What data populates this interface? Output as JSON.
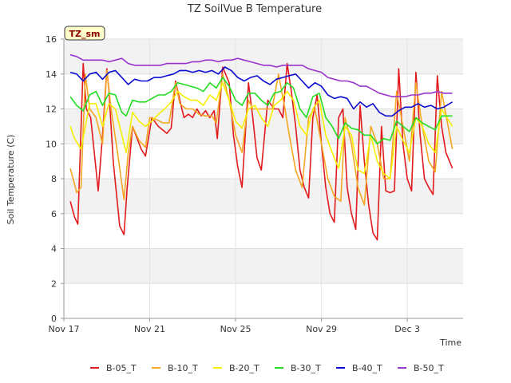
{
  "chart_data": {
    "type": "line",
    "title": "TZ SoilVue B Temperature",
    "xlabel": "Time",
    "ylabel": "Soil Temperature (C)",
    "badge": "TZ_sm",
    "ylim": [
      0,
      16
    ],
    "yticks": [
      0,
      2,
      4,
      6,
      8,
      10,
      12,
      14,
      16
    ],
    "xlim": [
      0,
      18.6
    ],
    "xticks": [
      {
        "x": 0,
        "label": "Nov 17"
      },
      {
        "x": 4,
        "label": "Nov 21"
      },
      {
        "x": 8,
        "label": "Nov 25"
      },
      {
        "x": 12,
        "label": "Nov 29"
      },
      {
        "x": 16,
        "label": "Dec 3"
      }
    ],
    "x_units": "days since Nov 17",
    "grid": true,
    "legend_position": "bottom",
    "series": [
      {
        "name": "B-05_T",
        "color": "#e31a1c",
        "x": [
          0.3,
          0.5,
          0.65,
          0.9,
          1.05,
          1.25,
          1.6,
          1.8,
          2.0,
          2.1,
          2.3,
          2.6,
          2.8,
          2.95,
          3.2,
          3.6,
          3.8,
          4.1,
          4.4,
          4.6,
          4.8,
          5.0,
          5.2,
          5.4,
          5.6,
          5.8,
          6.0,
          6.2,
          6.4,
          6.6,
          6.8,
          7.0,
          7.15,
          7.4,
          7.7,
          7.9,
          8.1,
          8.3,
          8.6,
          8.8,
          9.0,
          9.2,
          9.5,
          9.8,
          10.0,
          10.2,
          10.4,
          10.6,
          10.8,
          11.0,
          11.2,
          11.4,
          11.6,
          11.8,
          12.0,
          12.2,
          12.4,
          12.6,
          12.8,
          13.0,
          13.2,
          13.4,
          13.6,
          13.8,
          14.0,
          14.2,
          14.4,
          14.6,
          14.8,
          15.0,
          15.2,
          15.4,
          15.6,
          15.8,
          16.0,
          16.2,
          16.4,
          16.6,
          16.8,
          17.0,
          17.2,
          17.4,
          17.6,
          17.8,
          18.1
        ],
        "y": [
          6.7,
          5.8,
          5.4,
          14.6,
          12.0,
          11.5,
          7.3,
          10.5,
          14.3,
          13.0,
          9.0,
          5.3,
          4.8,
          7.5,
          11.0,
          9.7,
          9.3,
          11.5,
          11.0,
          10.8,
          10.6,
          10.9,
          13.6,
          12.5,
          11.5,
          11.7,
          11.5,
          12.0,
          11.6,
          11.9,
          11.5,
          11.9,
          10.3,
          14.4,
          13.5,
          10.5,
          8.7,
          7.5,
          13.5,
          11.5,
          9.2,
          8.5,
          12.5,
          12.0,
          12.0,
          11.5,
          14.6,
          13.0,
          11.0,
          8.5,
          7.5,
          6.9,
          11.5,
          12.8,
          10.0,
          7.5,
          6.0,
          5.5,
          11.5,
          12.0,
          7.5,
          6.0,
          5.1,
          12.2,
          9.0,
          6.5,
          4.9,
          4.5,
          11.0,
          7.3,
          7.2,
          7.3,
          14.3,
          10.0,
          8.0,
          7.3,
          14.1,
          10.5,
          8.0,
          7.5,
          7.1,
          13.9,
          11.0,
          9.5,
          8.6
        ]
      },
      {
        "name": "B-10_T",
        "color": "#f5a623",
        "x": [
          0.3,
          0.6,
          0.8,
          1.0,
          1.2,
          1.5,
          1.8,
          2.0,
          2.2,
          2.5,
          2.8,
          3.0,
          3.2,
          3.5,
          3.8,
          4.0,
          4.3,
          4.6,
          4.9,
          5.2,
          5.4,
          5.7,
          6.0,
          6.3,
          6.6,
          6.9,
          7.1,
          7.4,
          7.7,
          8.0,
          8.3,
          8.6,
          8.8,
          9.1,
          9.4,
          9.7,
          10.0,
          10.3,
          10.5,
          10.8,
          11.1,
          11.4,
          11.7,
          12.0,
          12.3,
          12.6,
          12.9,
          13.1,
          13.4,
          13.7,
          14.0,
          14.3,
          14.6,
          14.9,
          15.2,
          15.5,
          15.8,
          16.1,
          16.4,
          16.7,
          17.0,
          17.3,
          17.6,
          18.1
        ],
        "y": [
          8.6,
          7.2,
          7.5,
          14.0,
          12.0,
          11.5,
          10.0,
          14.2,
          12.0,
          9.5,
          6.8,
          9.5,
          11.0,
          10.2,
          9.8,
          11.5,
          11.4,
          11.2,
          11.2,
          13.5,
          12.3,
          12.0,
          12.0,
          11.7,
          11.6,
          11.6,
          11.2,
          14.0,
          12.5,
          10.5,
          9.5,
          12.5,
          12.0,
          12.0,
          12.0,
          12.0,
          14.0,
          12.0,
          10.5,
          8.5,
          7.5,
          11.5,
          12.0,
          10.0,
          8.0,
          7.0,
          6.7,
          11.5,
          10.0,
          7.5,
          6.5,
          11.0,
          10.0,
          8.0,
          8.0,
          13.0,
          11.0,
          9.0,
          13.5,
          11.0,
          9.0,
          8.4,
          13.0,
          9.7
        ]
      },
      {
        "name": "B-20_T",
        "color": "#f5f000",
        "x": [
          0.3,
          0.5,
          0.8,
          1.2,
          1.5,
          1.8,
          2.1,
          2.4,
          2.7,
          2.9,
          3.2,
          3.5,
          3.8,
          4.1,
          4.4,
          4.7,
          5.0,
          5.3,
          5.6,
          5.9,
          6.2,
          6.5,
          6.8,
          7.1,
          7.4,
          7.7,
          8.0,
          8.3,
          8.6,
          8.9,
          9.2,
          9.5,
          9.8,
          10.1,
          10.4,
          10.7,
          11.0,
          11.3,
          11.6,
          11.9,
          12.2,
          12.5,
          12.8,
          13.1,
          13.4,
          13.7,
          14.0,
          14.3,
          14.6,
          14.9,
          15.2,
          15.5,
          15.8,
          16.1,
          16.4,
          16.7,
          17.0,
          17.3,
          17.6,
          18.1
        ],
        "y": [
          11.0,
          10.3,
          9.7,
          12.3,
          12.3,
          11.0,
          12.3,
          12.0,
          10.5,
          9.5,
          11.8,
          11.3,
          11.0,
          11.3,
          11.7,
          12.0,
          12.4,
          13.0,
          12.7,
          12.5,
          12.5,
          12.2,
          12.8,
          12.5,
          13.5,
          12.5,
          11.3,
          10.9,
          12.0,
          12.2,
          11.5,
          11.0,
          12.2,
          12.5,
          13.0,
          12.5,
          11.0,
          10.5,
          12.0,
          12.5,
          10.5,
          9.5,
          8.6,
          11.0,
          10.5,
          8.5,
          8.3,
          10.5,
          9.0,
          8.3,
          8.0,
          11.0,
          10.2,
          9.5,
          11.5,
          11.0,
          10.0,
          9.5,
          12.0,
          11.0
        ]
      },
      {
        "name": "B-30_T",
        "color": "#22dd22",
        "x": [
          0.3,
          0.6,
          0.9,
          1.2,
          1.5,
          1.8,
          2.1,
          2.4,
          2.7,
          2.9,
          3.2,
          3.5,
          3.8,
          4.1,
          4.4,
          4.7,
          5.0,
          5.3,
          5.6,
          5.9,
          6.2,
          6.5,
          6.8,
          7.1,
          7.4,
          7.7,
          8.0,
          8.3,
          8.6,
          8.9,
          9.2,
          9.5,
          9.8,
          10.1,
          10.4,
          10.7,
          11.0,
          11.3,
          11.6,
          11.9,
          12.2,
          12.5,
          12.8,
          13.1,
          13.4,
          13.7,
          14.0,
          14.3,
          14.6,
          14.9,
          15.2,
          15.5,
          15.8,
          16.1,
          16.4,
          16.7,
          17.0,
          17.3,
          17.6,
          18.1
        ],
        "y": [
          12.7,
          12.2,
          11.9,
          12.8,
          13.0,
          12.2,
          12.9,
          12.8,
          11.8,
          11.6,
          12.5,
          12.4,
          12.4,
          12.6,
          12.8,
          12.8,
          13.0,
          13.5,
          13.4,
          13.3,
          13.2,
          13.0,
          13.5,
          13.2,
          13.8,
          13.3,
          12.5,
          12.2,
          12.9,
          12.9,
          12.5,
          12.2,
          12.9,
          13.0,
          13.5,
          13.2,
          12.0,
          11.5,
          12.7,
          12.9,
          11.5,
          11.0,
          10.3,
          11.2,
          10.9,
          10.8,
          10.5,
          10.5,
          10.0,
          10.3,
          10.2,
          11.3,
          11.0,
          10.7,
          11.5,
          11.2,
          11.0,
          10.8,
          11.6,
          11.6
        ]
      },
      {
        "name": "B-40_T",
        "color": "#0a0ad0",
        "x": [
          0.3,
          0.6,
          0.9,
          1.2,
          1.5,
          1.8,
          2.1,
          2.4,
          2.7,
          3.0,
          3.3,
          3.6,
          3.9,
          4.2,
          4.5,
          4.8,
          5.1,
          5.4,
          5.7,
          6.0,
          6.3,
          6.6,
          6.9,
          7.2,
          7.5,
          7.8,
          8.1,
          8.4,
          8.7,
          9.0,
          9.3,
          9.6,
          9.9,
          10.2,
          10.5,
          10.8,
          11.1,
          11.4,
          11.7,
          12.0,
          12.3,
          12.6,
          12.9,
          13.2,
          13.5,
          13.8,
          14.1,
          14.4,
          14.7,
          15.0,
          15.3,
          15.6,
          15.9,
          16.2,
          16.5,
          16.8,
          17.1,
          17.4,
          17.7,
          18.1
        ],
        "y": [
          14.1,
          14.0,
          13.6,
          14.0,
          14.1,
          13.7,
          14.1,
          14.2,
          13.8,
          13.4,
          13.7,
          13.6,
          13.6,
          13.8,
          13.8,
          13.9,
          14.0,
          14.2,
          14.2,
          14.1,
          14.2,
          14.1,
          14.2,
          14.0,
          14.4,
          14.2,
          13.8,
          13.6,
          13.8,
          13.9,
          13.6,
          13.4,
          13.7,
          13.8,
          13.9,
          14.0,
          13.6,
          13.2,
          13.5,
          13.3,
          12.8,
          12.6,
          12.7,
          12.6,
          12.0,
          12.4,
          12.1,
          12.3,
          11.8,
          11.6,
          11.6,
          11.9,
          12.1,
          12.1,
          12.3,
          12.1,
          12.2,
          12.0,
          12.1,
          12.4
        ]
      },
      {
        "name": "B-50_T",
        "color": "#9933cc",
        "x": [
          0.3,
          0.6,
          0.9,
          1.2,
          1.5,
          1.8,
          2.1,
          2.4,
          2.7,
          3.0,
          3.3,
          3.6,
          3.9,
          4.2,
          4.5,
          4.8,
          5.1,
          5.4,
          5.7,
          6.0,
          6.3,
          6.6,
          6.9,
          7.2,
          7.5,
          7.8,
          8.1,
          8.4,
          8.7,
          9.0,
          9.3,
          9.6,
          9.9,
          10.2,
          10.5,
          10.8,
          11.1,
          11.4,
          11.7,
          12.0,
          12.3,
          12.6,
          12.9,
          13.2,
          13.5,
          13.8,
          14.1,
          14.4,
          14.7,
          15.0,
          15.3,
          15.6,
          15.9,
          16.2,
          16.5,
          16.8,
          17.1,
          17.4,
          17.7,
          18.1
        ],
        "y": [
          15.1,
          15.0,
          14.8,
          14.8,
          14.8,
          14.8,
          14.7,
          14.8,
          14.9,
          14.6,
          14.5,
          14.5,
          14.5,
          14.5,
          14.5,
          14.6,
          14.6,
          14.6,
          14.6,
          14.7,
          14.7,
          14.8,
          14.8,
          14.7,
          14.8,
          14.8,
          14.9,
          14.8,
          14.7,
          14.6,
          14.5,
          14.5,
          14.4,
          14.5,
          14.5,
          14.5,
          14.5,
          14.3,
          14.2,
          14.1,
          13.8,
          13.7,
          13.6,
          13.6,
          13.5,
          13.3,
          13.3,
          13.1,
          12.9,
          12.8,
          12.7,
          12.7,
          12.7,
          12.8,
          12.8,
          12.9,
          12.9,
          13.0,
          12.9,
          12.9
        ]
      }
    ]
  }
}
